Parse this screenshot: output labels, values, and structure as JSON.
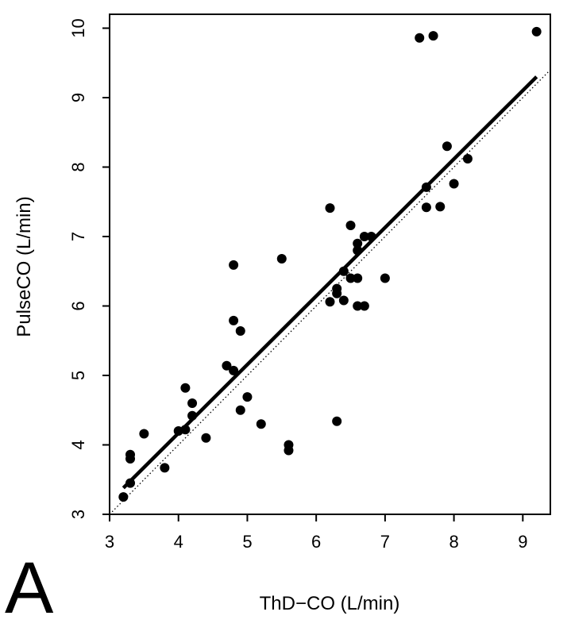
{
  "chart_data": {
    "type": "scatter",
    "title": "",
    "panel_label": "A",
    "xlabel": "ThD−CO (L/min)",
    "ylabel": "PulseCO (L/min)",
    "xlim": [
      3.0,
      9.4
    ],
    "ylim": [
      3.0,
      10.2
    ],
    "xticks": [
      3,
      4,
      5,
      6,
      7,
      8,
      9
    ],
    "yticks": [
      3,
      4,
      5,
      6,
      7,
      8,
      9,
      10
    ],
    "grid": false,
    "points": [
      {
        "x": 3.2,
        "y": 3.25
      },
      {
        "x": 3.3,
        "y": 3.45
      },
      {
        "x": 3.3,
        "y": 3.8
      },
      {
        "x": 3.3,
        "y": 3.86
      },
      {
        "x": 3.5,
        "y": 4.16
      },
      {
        "x": 3.8,
        "y": 3.67
      },
      {
        "x": 4.0,
        "y": 4.2
      },
      {
        "x": 4.1,
        "y": 4.22
      },
      {
        "x": 4.1,
        "y": 4.82
      },
      {
        "x": 4.2,
        "y": 4.42
      },
      {
        "x": 4.2,
        "y": 4.6
      },
      {
        "x": 4.4,
        "y": 4.1
      },
      {
        "x": 4.7,
        "y": 5.14
      },
      {
        "x": 4.8,
        "y": 5.07
      },
      {
        "x": 4.8,
        "y": 5.79
      },
      {
        "x": 4.8,
        "y": 6.59
      },
      {
        "x": 4.9,
        "y": 5.64
      },
      {
        "x": 4.9,
        "y": 4.5
      },
      {
        "x": 5.0,
        "y": 4.69
      },
      {
        "x": 5.2,
        "y": 4.3
      },
      {
        "x": 5.5,
        "y": 6.68
      },
      {
        "x": 5.6,
        "y": 4.0
      },
      {
        "x": 5.6,
        "y": 3.92
      },
      {
        "x": 6.2,
        "y": 7.41
      },
      {
        "x": 6.2,
        "y": 6.06
      },
      {
        "x": 6.3,
        "y": 6.25
      },
      {
        "x": 6.3,
        "y": 6.18
      },
      {
        "x": 6.3,
        "y": 4.34
      },
      {
        "x": 6.4,
        "y": 6.5
      },
      {
        "x": 6.4,
        "y": 6.08
      },
      {
        "x": 6.5,
        "y": 6.4
      },
      {
        "x": 6.5,
        "y": 7.16
      },
      {
        "x": 6.6,
        "y": 6.8
      },
      {
        "x": 6.6,
        "y": 6.9
      },
      {
        "x": 6.6,
        "y": 6.4
      },
      {
        "x": 6.6,
        "y": 6.0
      },
      {
        "x": 6.7,
        "y": 7.0
      },
      {
        "x": 6.7,
        "y": 6.0
      },
      {
        "x": 6.8,
        "y": 7.0
      },
      {
        "x": 7.0,
        "y": 6.4
      },
      {
        "x": 7.5,
        "y": 9.86
      },
      {
        "x": 7.6,
        "y": 7.71
      },
      {
        "x": 7.6,
        "y": 7.42
      },
      {
        "x": 7.7,
        "y": 9.89
      },
      {
        "x": 7.8,
        "y": 7.43
      },
      {
        "x": 7.9,
        "y": 8.3
      },
      {
        "x": 8.0,
        "y": 7.76
      },
      {
        "x": 8.2,
        "y": 8.12
      },
      {
        "x": 9.2,
        "y": 9.95
      }
    ],
    "regression_line": {
      "x": [
        3.2,
        9.2
      ],
      "y": [
        3.38,
        9.3
      ],
      "style": "solid"
    },
    "identity_line": {
      "x": [
        3.0,
        9.4
      ],
      "y": [
        3.0,
        9.4
      ],
      "style": "dotted"
    }
  }
}
